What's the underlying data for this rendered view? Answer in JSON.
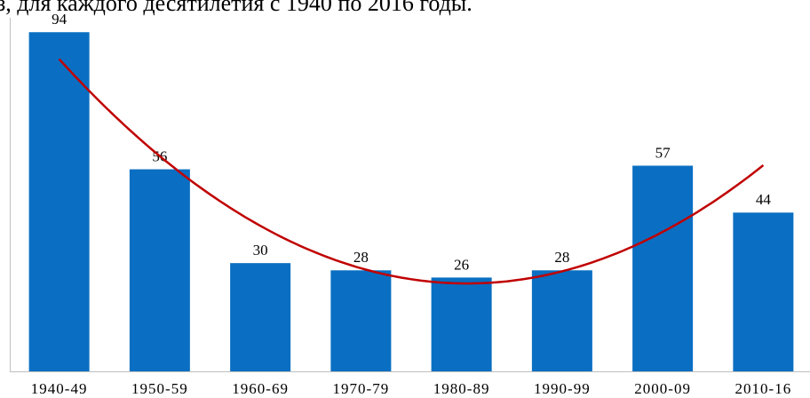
{
  "chart_data": {
    "type": "bar",
    "title": "з, для каждого десятилетия с 1940 по 2016 годы.",
    "categories": [
      "1940-49",
      "1950-59",
      "1960-69",
      "1970-79",
      "1980-89",
      "1990-99",
      "2000-09",
      "2010-16"
    ],
    "values": [
      94,
      56,
      30,
      28,
      26,
      28,
      57,
      44
    ],
    "color": "#0a6fc2",
    "ylim": [
      0,
      98
    ],
    "trendline": {
      "type": "polynomial",
      "order": 2,
      "color": "#c00000"
    }
  }
}
